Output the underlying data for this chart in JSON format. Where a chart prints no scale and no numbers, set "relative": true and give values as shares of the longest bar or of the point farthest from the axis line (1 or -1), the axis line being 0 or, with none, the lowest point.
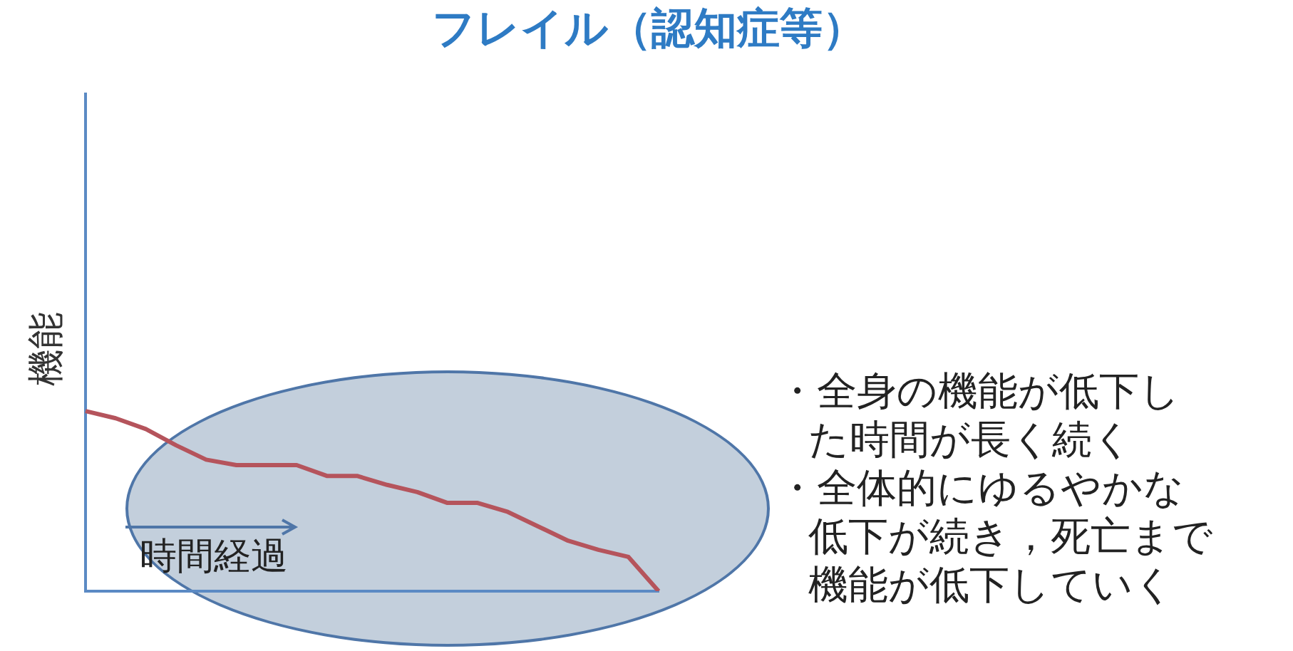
{
  "chart_data": {
    "type": "line",
    "title": "フレイル（認知症等）",
    "ylabel": "機能",
    "xlabel": "時間経過",
    "relative": true,
    "grid": false,
    "legend": false,
    "marker": "none",
    "categories": [
      null,
      null,
      null,
      null,
      null,
      null,
      null,
      null,
      null,
      null,
      null,
      null,
      null,
      null,
      null,
      null,
      null,
      null,
      null,
      null
    ],
    "series": [
      {
        "color": "#b5545c",
        "values": [
          1.0,
          0.96,
          0.9,
          0.81,
          0.73,
          0.7,
          0.7,
          0.7,
          0.64,
          0.64,
          0.59,
          0.55,
          0.49,
          0.49,
          0.44,
          0.36,
          0.28,
          0.23,
          0.19,
          0.0
        ]
      }
    ],
    "annotations": [
      "・全身の機能が低下した時間が長く続く",
      "・全体的にゆるやかな低下が続き，死亡まで機能が低下していく"
    ]
  }
}
